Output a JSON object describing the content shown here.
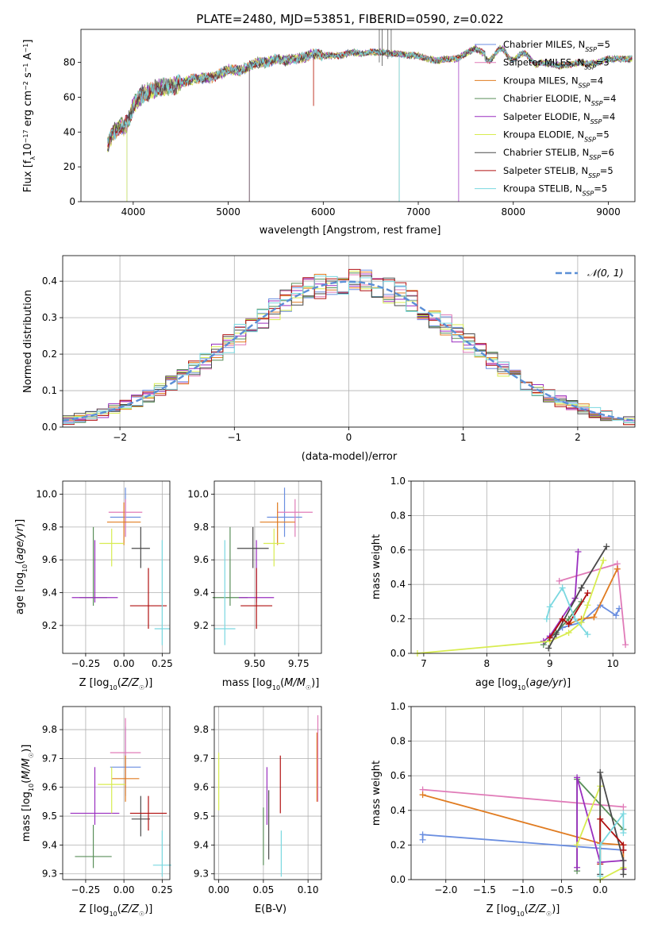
{
  "figure_title": "PLATE=2480, MJD=53851, FIBERID=0590, z=0.022",
  "colors": {
    "Chabrier MILES": "#6a8ee0",
    "Salpeter MILES": "#e07bb8",
    "Kroupa MILES": "#e07b20",
    "Chabrier ELODIE": "#5a8f5a",
    "Salpeter ELODIE": "#9a2fbf",
    "Kroupa ELODIE": "#d8ec50",
    "Chabrier STELIB": "#4a4a4a",
    "Salpeter STELIB": "#b01010",
    "Kroupa STELIB": "#7ad8e0",
    "normal": "#5b8fd6",
    "grid": "#b0b0b0"
  },
  "chart_data": [
    {
      "id": "spectrum",
      "type": "line",
      "title": "",
      "xlabel": "wavelength [Angstrom, rest frame]",
      "ylabel": "Flux [fλ10⁻¹⁷ erg cm⁻² s⁻¹ A⁻¹]",
      "xlim": [
        3450,
        9280
      ],
      "ylim": [
        0,
        99
      ],
      "xticks": [
        4000,
        5000,
        6000,
        7000,
        8000,
        9000
      ],
      "yticks": [
        0,
        20,
        40,
        60,
        80
      ],
      "grid": false,
      "legend_position": "right",
      "continuum": {
        "x": [
          3730,
          3760,
          3800,
          3850,
          3900,
          3950,
          4000,
          4100,
          4200,
          4300,
          4400,
          4500,
          4600,
          4700,
          4800,
          4900,
          5000,
          5100,
          5200,
          5300,
          5400,
          5500,
          5600,
          5700,
          5800,
          5900,
          6000,
          6100,
          6200,
          6300,
          6400,
          6500,
          6600,
          6700,
          6800,
          6900,
          7000,
          7100,
          7200,
          7300,
          7400,
          7500,
          7600,
          7700,
          7800,
          7900,
          8000,
          8100,
          8200,
          8300,
          8400,
          8500,
          8600,
          8700,
          8800,
          8900,
          9000,
          9100,
          9200
        ],
        "y": [
          33,
          36,
          40,
          44,
          43,
          46,
          55,
          62,
          64,
          66,
          66,
          68,
          70,
          71,
          71,
          73,
          76,
          75,
          77,
          80,
          80,
          82,
          81,
          82,
          83,
          85,
          84,
          84,
          84,
          86,
          85,
          86,
          86,
          85,
          85,
          84,
          84,
          82,
          81,
          82,
          82,
          85,
          88,
          85,
          83,
          86,
          84,
          82,
          83,
          80,
          79,
          78,
          79,
          80,
          79,
          80,
          82,
          82,
          82
        ]
      },
      "dips": [
        {
          "x": 3934,
          "y": 0
        },
        {
          "x": 5222,
          "y": 0
        },
        {
          "x": 5898,
          "y": 55
        },
        {
          "x": 6800,
          "y": 0
        },
        {
          "x": 7425,
          "y": 0
        }
      ],
      "series": [
        {
          "name": "Chabrier MILES, N_SSP=5",
          "label_main": "Chabrier MILES, N",
          "label_sub": "SSP",
          "label_tail": "=5"
        },
        {
          "name": "Salpeter MILES, N_SSP=3",
          "label_main": "Salpeter MILES, N",
          "label_sub": "SSP",
          "label_tail": "=3"
        },
        {
          "name": "Kroupa MILES, N_SSP=4",
          "label_main": "Kroupa MILES, N",
          "label_sub": "SSP",
          "label_tail": "=4"
        },
        {
          "name": "Chabrier ELODIE, N_SSP=4",
          "label_main": "Chabrier ELODIE, N",
          "label_sub": "SSP",
          "label_tail": "=4"
        },
        {
          "name": "Salpeter ELODIE, N_SSP=4",
          "label_main": "Salpeter ELODIE, N",
          "label_sub": "SSP",
          "label_tail": "=4"
        },
        {
          "name": "Kroupa ELODIE, N_SSP=5",
          "label_main": "Kroupa ELODIE, N",
          "label_sub": "SSP",
          "label_tail": "=5"
        },
        {
          "name": "Chabrier STELIB, N_SSP=6",
          "label_main": "Chabrier STELIB, N",
          "label_sub": "SSP",
          "label_tail": "=6"
        },
        {
          "name": "Salpeter STELIB, N_SSP=5",
          "label_main": "Salpeter STELIB, N",
          "label_sub": "SSP",
          "label_tail": "=5"
        },
        {
          "name": "Kroupa STELIB, N_SSP=5",
          "label_main": "Kroupa STELIB, N",
          "label_sub": "SSP",
          "label_tail": "=5"
        }
      ]
    },
    {
      "id": "residuals",
      "type": "histogram",
      "xlabel": "(data-model)/error",
      "ylabel": "Normed distribution",
      "xlim": [
        -2.5,
        2.5
      ],
      "ylim": [
        0,
        0.47
      ],
      "xticks": [
        -2,
        -1,
        0,
        1,
        2
      ],
      "xtick_labels": [
        "−2",
        "−1",
        "0",
        "1",
        "2"
      ],
      "yticks": [
        0.0,
        0.1,
        0.2,
        0.3,
        0.4
      ],
      "grid": true,
      "legend_position": "top-right",
      "legend_label": "𝒩(0, 1)",
      "bin_edges_start": -2.5,
      "bin_width": 0.1,
      "bin_count": 50,
      "reference_curve": "normal(0,1)"
    },
    {
      "id": "age_vs_Z",
      "type": "errorbar",
      "xlabel": "Z [log₁₀(Z/Z☉)]",
      "ylabel": "age  [log₁₀(age/yr)]",
      "xlim": [
        -0.4,
        0.3
      ],
      "ylim": [
        9.03,
        10.08
      ],
      "xticks": [
        -0.25,
        0.0,
        0.25
      ],
      "xtick_labels": [
        "−0.25",
        "0.00",
        "0.25"
      ],
      "yticks": [
        9.2,
        9.4,
        9.6,
        9.8,
        10.0
      ],
      "grid": true,
      "points": [
        {
          "series": "Chabrier MILES",
          "x": 0.01,
          "y": 9.86,
          "xerr": 0.1,
          "yerr": [
            0.12,
            0.18
          ]
        },
        {
          "series": "Salpeter MILES",
          "x": 0.01,
          "y": 9.89,
          "xerr": 0.11,
          "yerr": [
            0.15,
            0.08
          ]
        },
        {
          "series": "Kroupa MILES",
          "x": 0.0,
          "y": 9.83,
          "xerr": 0.11,
          "yerr": [
            0.14,
            0.12
          ]
        },
        {
          "series": "Chabrier ELODIE",
          "x": -0.2,
          "y": 9.37,
          "xerr": 0.09,
          "yerr": [
            0.05,
            0.43
          ]
        },
        {
          "series": "Salpeter ELODIE",
          "x": -0.19,
          "y": 9.37,
          "xerr": 0.15,
          "yerr": [
            0.03,
            0.35
          ]
        },
        {
          "series": "Kroupa ELODIE",
          "x": -0.08,
          "y": 9.7,
          "xerr": 0.08,
          "yerr": [
            0.14,
            0.09
          ]
        },
        {
          "series": "Chabrier STELIB",
          "x": 0.11,
          "y": 9.67,
          "xerr": 0.06,
          "yerr": [
            0.12,
            0.13
          ]
        },
        {
          "series": "Salpeter STELIB",
          "x": 0.16,
          "y": 9.32,
          "xerr": 0.12,
          "yerr": [
            0.14,
            0.23
          ]
        },
        {
          "series": "Kroupa STELIB",
          "x": 0.25,
          "y": 9.18,
          "xerr": 0.05,
          "yerr": [
            0.1,
            0.54
          ]
        }
      ]
    },
    {
      "id": "age_vs_mass",
      "type": "errorbar",
      "xlabel": "mass [log₁₀(M/M☉)]",
      "ylabel": "",
      "xlim": [
        9.27,
        9.88
      ],
      "ylim": [
        9.03,
        10.08
      ],
      "xticks": [
        9.5,
        9.75
      ],
      "xtick_labels": [
        "9.50",
        "9.75"
      ],
      "yticks": [
        9.2,
        9.4,
        9.6,
        9.8,
        10.0
      ],
      "grid": true,
      "points": [
        {
          "series": "Chabrier MILES",
          "x": 9.67,
          "y": 9.86,
          "xerr": 0.1,
          "yerr": [
            0.12,
            0.18
          ]
        },
        {
          "series": "Salpeter MILES",
          "x": 9.73,
          "y": 9.89,
          "xerr": 0.1,
          "yerr": [
            0.15,
            0.08
          ]
        },
        {
          "series": "Kroupa MILES",
          "x": 9.63,
          "y": 9.83,
          "xerr": 0.1,
          "yerr": [
            0.14,
            0.12
          ]
        },
        {
          "series": "Chabrier ELODIE",
          "x": 9.36,
          "y": 9.37,
          "xerr": 0.1,
          "yerr": [
            0.05,
            0.43
          ]
        },
        {
          "series": "Salpeter ELODIE",
          "x": 9.51,
          "y": 9.37,
          "xerr": 0.1,
          "yerr": [
            0.03,
            0.35
          ]
        },
        {
          "series": "Kroupa ELODIE",
          "x": 9.61,
          "y": 9.7,
          "xerr": 0.06,
          "yerr": [
            0.14,
            0.09
          ]
        },
        {
          "series": "Chabrier STELIB",
          "x": 9.49,
          "y": 9.67,
          "xerr": 0.09,
          "yerr": [
            0.12,
            0.13
          ]
        },
        {
          "series": "Salpeter STELIB",
          "x": 9.51,
          "y": 9.32,
          "xerr": 0.09,
          "yerr": [
            0.14,
            0.23
          ]
        },
        {
          "series": "Kroupa STELIB",
          "x": 9.33,
          "y": 9.18,
          "xerr": 0.06,
          "yerr": [
            0.1,
            0.54
          ]
        }
      ]
    },
    {
      "id": "weight_vs_age",
      "type": "line",
      "xlabel": "age  [log₁₀(age/yr)]",
      "ylabel": "mass weight",
      "xlim": [
        6.8,
        10.35
      ],
      "ylim": [
        0,
        1
      ],
      "xticks": [
        7,
        8,
        9,
        10
      ],
      "yticks": [
        0.0,
        0.2,
        0.4,
        0.6,
        0.8,
        1.0
      ],
      "grid": true,
      "series": [
        {
          "name": "Chabrier MILES",
          "x": [
            9.0,
            9.2,
            9.5,
            9.8,
            10.05,
            10.1
          ],
          "y": [
            0.09,
            0.15,
            0.18,
            0.28,
            0.22,
            0.26
          ]
        },
        {
          "name": "Salpeter MILES",
          "x": [
            9.15,
            10.07,
            10.2
          ],
          "y": [
            0.42,
            0.52,
            0.05
          ]
        },
        {
          "name": "Kroupa MILES",
          "x": [
            9.3,
            9.5,
            9.7,
            10.07
          ],
          "y": [
            0.17,
            0.2,
            0.21,
            0.49
          ]
        },
        {
          "name": "Chabrier ELODIE",
          "x": [
            8.9,
            9.1,
            9.3,
            9.5
          ],
          "y": [
            0.05,
            0.12,
            0.2,
            0.3
          ]
        },
        {
          "name": "Salpeter ELODIE",
          "x": [
            8.9,
            9.0,
            9.4,
            9.45
          ],
          "y": [
            0.07,
            0.1,
            0.32,
            0.59
          ]
        },
        {
          "name": "Kroupa ELODIE",
          "x": [
            6.9,
            9.0,
            9.3,
            9.5,
            9.6,
            9.85
          ],
          "y": [
            0.0,
            0.07,
            0.12,
            0.18,
            0.28,
            0.54
          ]
        },
        {
          "name": "Chabrier STELIB",
          "x": [
            8.98,
            9.1,
            9.5,
            9.9
          ],
          "y": [
            0.03,
            0.11,
            0.38,
            0.62
          ]
        },
        {
          "name": "Salpeter STELIB",
          "x": [
            9.0,
            9.2,
            9.3,
            9.6
          ],
          "y": [
            0.09,
            0.2,
            0.17,
            0.35
          ]
        },
        {
          "name": "Kroupa STELIB",
          "x": [
            8.95,
            9.0,
            9.2,
            9.4,
            9.6
          ],
          "y": [
            0.2,
            0.27,
            0.38,
            0.2,
            0.11
          ]
        }
      ]
    },
    {
      "id": "mass_vs_Z",
      "type": "errorbar",
      "xlabel": "Z [log₁₀(Z/Z☉)]",
      "ylabel": "mass [log₁₀(M/M☉)]",
      "xlim": [
        -0.4,
        0.3
      ],
      "ylim": [
        9.28,
        9.88
      ],
      "xticks": [
        -0.25,
        0.0,
        0.25
      ],
      "xtick_labels": [
        "−0.25",
        "0.00",
        "0.25"
      ],
      "yticks": [
        9.3,
        9.4,
        9.5,
        9.6,
        9.7,
        9.8
      ],
      "grid": true,
      "points": [
        {
          "series": "Chabrier MILES",
          "x": 0.01,
          "y": 9.67,
          "xerr": 0.1,
          "yerr": [
            0.1,
            0.14
          ]
        },
        {
          "series": "Salpeter MILES",
          "x": 0.01,
          "y": 9.72,
          "xerr": 0.1,
          "yerr": [
            0.12,
            0.12
          ]
        },
        {
          "series": "Kroupa MILES",
          "x": 0.01,
          "y": 9.63,
          "xerr": 0.09,
          "yerr": [
            0.08,
            0.08
          ]
        },
        {
          "series": "Chabrier ELODIE",
          "x": -0.2,
          "y": 9.36,
          "xerr": 0.12,
          "yerr": [
            0.04,
            0.11
          ]
        },
        {
          "series": "Salpeter ELODIE",
          "x": -0.19,
          "y": 9.51,
          "xerr": 0.16,
          "yerr": [
            0.04,
            0.16
          ]
        },
        {
          "series": "Kroupa ELODIE",
          "x": -0.08,
          "y": 9.61,
          "xerr": 0.09,
          "yerr": [
            0.1,
            0.06
          ]
        },
        {
          "series": "Chabrier STELIB",
          "x": 0.11,
          "y": 9.49,
          "xerr": 0.06,
          "yerr": [
            0.06,
            0.08
          ]
        },
        {
          "series": "Salpeter STELIB",
          "x": 0.16,
          "y": 9.51,
          "xerr": 0.12,
          "yerr": [
            0.06,
            0.06
          ]
        },
        {
          "series": "Kroupa STELIB",
          "x": 0.25,
          "y": 9.33,
          "xerr": 0.06,
          "yerr": [
            0.04,
            0.12
          ]
        }
      ]
    },
    {
      "id": "mass_vs_ebv",
      "type": "errorbar",
      "xlabel": "E(B-V)",
      "ylabel": "",
      "xlim": [
        -0.005,
        0.115
      ],
      "ylim": [
        9.28,
        9.88
      ],
      "xticks": [
        0.0,
        0.05,
        0.1
      ],
      "xtick_labels": [
        "0.00",
        "0.05",
        "0.10"
      ],
      "yticks": [
        9.3,
        9.4,
        9.5,
        9.6,
        9.7,
        9.8
      ],
      "grid": true,
      "points": [
        {
          "series": "Kroupa ELODIE",
          "x": 0.0,
          "y": 9.62,
          "xerr": 0,
          "yerr": [
            0.1,
            0.1
          ]
        },
        {
          "series": "Chabrier ELODIE",
          "x": 0.05,
          "y": 9.43,
          "xerr": 0,
          "yerr": [
            0.1,
            0.1
          ]
        },
        {
          "series": "Salpeter ELODIE",
          "x": 0.054,
          "y": 9.57,
          "xerr": 0,
          "yerr": [
            0.1,
            0.1
          ]
        },
        {
          "series": "Chabrier STELIB",
          "x": 0.056,
          "y": 9.47,
          "xerr": 0,
          "yerr": [
            0.12,
            0.12
          ]
        },
        {
          "series": "Salpeter STELIB",
          "x": 0.069,
          "y": 9.61,
          "xerr": 0,
          "yerr": [
            0.1,
            0.1
          ]
        },
        {
          "series": "Kroupa STELIB",
          "x": 0.07,
          "y": 9.37,
          "xerr": 0,
          "yerr": [
            0.08,
            0.08
          ]
        },
        {
          "series": "Kroupa MILES",
          "x": 0.11,
          "y": 9.67,
          "xerr": 0,
          "yerr": [
            0.12,
            0.12
          ]
        },
        {
          "series": "Salpeter MILES",
          "x": 0.111,
          "y": 9.7,
          "xerr": 0,
          "yerr": [
            0.15,
            0.15
          ]
        }
      ]
    },
    {
      "id": "weight_vs_Z",
      "type": "line",
      "xlabel": "Z [log₁₀(Z/Z☉)]",
      "ylabel": "mass weight",
      "xlim": [
        -2.45,
        0.45
      ],
      "ylim": [
        0,
        1
      ],
      "xticks": [
        -2.0,
        -1.5,
        -1.0,
        -0.5,
        0.0
      ],
      "xtick_labels": [
        "−2.0",
        "−1.5",
        "−1.0",
        "−0.5",
        "0.0"
      ],
      "yticks": [
        0.0,
        0.2,
        0.4,
        0.6,
        0.8,
        1.0
      ],
      "grid": true,
      "series": [
        {
          "name": "Chabrier MILES",
          "x": [
            -2.3,
            -2.3,
            0.3
          ],
          "y": [
            0.23,
            0.26,
            0.17
          ]
        },
        {
          "name": "Salpeter MILES",
          "x": [
            -2.3,
            0.3
          ],
          "y": [
            0.52,
            0.42
          ]
        },
        {
          "name": "Kroupa MILES",
          "x": [
            -2.3,
            0.0,
            0.3,
            0.3
          ],
          "y": [
            0.49,
            0.21,
            0.2,
            0.06
          ]
        },
        {
          "name": "Chabrier ELODIE",
          "x": [
            -0.3,
            -0.3,
            0.3
          ],
          "y": [
            0.05,
            0.58,
            0.29
          ]
        },
        {
          "name": "Salpeter ELODIE",
          "x": [
            -0.3,
            -0.3,
            0.0,
            0.3,
            0.3
          ],
          "y": [
            0.07,
            0.59,
            0.1,
            0.11,
            0.06
          ]
        },
        {
          "name": "Kroupa ELODIE",
          "x": [
            -0.3,
            0.0,
            0.0,
            0.3
          ],
          "y": [
            0.2,
            0.54,
            0.0,
            0.07
          ]
        },
        {
          "name": "Chabrier STELIB",
          "x": [
            0.0,
            0.0,
            0.3,
            0.3
          ],
          "y": [
            0.03,
            0.62,
            0.11,
            0.03
          ]
        },
        {
          "name": "Salpeter STELIB",
          "x": [
            0.0,
            0.0,
            0.3,
            0.3
          ],
          "y": [
            0.09,
            0.35,
            0.2,
            0.17
          ]
        },
        {
          "name": "Kroupa STELIB",
          "x": [
            0.0,
            0.0,
            0.3,
            0.3
          ],
          "y": [
            0.02,
            0.2,
            0.38,
            0.27
          ]
        }
      ]
    }
  ]
}
